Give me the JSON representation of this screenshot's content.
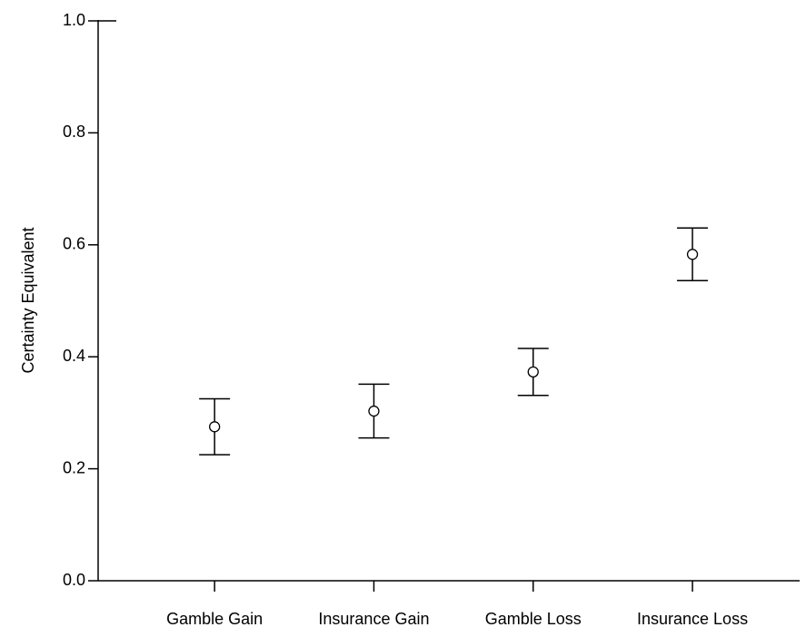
{
  "chart_data": {
    "type": "errorbar",
    "ylabel": "Certainty Equivalent",
    "categories": [
      "Gamble Gain",
      "Insurance Gain",
      "Gamble Loss",
      "Insurance Loss"
    ],
    "values": [
      0.275,
      0.303,
      0.373,
      0.583
    ],
    "errors": [
      0.05,
      0.048,
      0.042,
      0.047
    ],
    "color": "#000000",
    "ylim": [
      0,
      1
    ],
    "yticks": [
      {
        "value": 0,
        "label": "0.0"
      },
      0.2,
      0.4,
      0.6,
      0.8,
      {
        "value": 1,
        "label": "1.0"
      }
    ]
  }
}
